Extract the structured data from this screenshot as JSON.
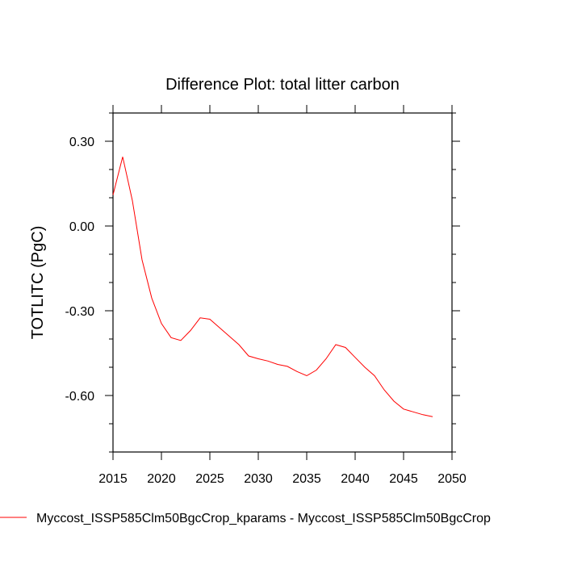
{
  "chart_data": {
    "type": "line",
    "title": "Difference Plot: total litter carbon",
    "xlabel": "",
    "ylabel": "TOTLITC  (PgC)",
    "xlim": [
      2015,
      2050
    ],
    "ylim": [
      -0.8,
      0.4
    ],
    "xticks": [
      2015,
      2020,
      2025,
      2030,
      2035,
      2040,
      2045,
      2050
    ],
    "xtick_labels": [
      "2015",
      "2020",
      "2025",
      "2030",
      "2035",
      "2040",
      "2045",
      "2050"
    ],
    "yticks": [
      0.3,
      0.0,
      -0.3,
      -0.6
    ],
    "ytick_labels": [
      "0.30",
      "0.00",
      "-0.30",
      "-0.60"
    ],
    "grid": false,
    "legend_position": "bottom",
    "series": [
      {
        "name": "Myccost_ISSP585Clm50BgcCrop_kparams - Myccost_ISSP585Clm50BgcCrop",
        "color": "#ff0000",
        "x": [
          2015,
          2016,
          2017,
          2018,
          2019,
          2020,
          2021,
          2022,
          2023,
          2024,
          2025,
          2026,
          2027,
          2028,
          2029,
          2030,
          2031,
          2032,
          2033,
          2034,
          2035,
          2036,
          2037,
          2038,
          2039,
          2040,
          2041,
          2042,
          2043,
          2044,
          2045,
          2046,
          2047,
          2048
        ],
        "y": [
          0.11,
          0.245,
          0.09,
          -0.12,
          -0.255,
          -0.345,
          -0.395,
          -0.405,
          -0.37,
          -0.325,
          -0.33,
          -0.36,
          -0.39,
          -0.42,
          -0.46,
          -0.47,
          -0.478,
          -0.49,
          -0.497,
          -0.515,
          -0.53,
          -0.51,
          -0.47,
          -0.42,
          -0.43,
          -0.465,
          -0.5,
          -0.53,
          -0.58,
          -0.62,
          -0.648,
          -0.658,
          -0.668,
          -0.675
        ]
      }
    ]
  }
}
